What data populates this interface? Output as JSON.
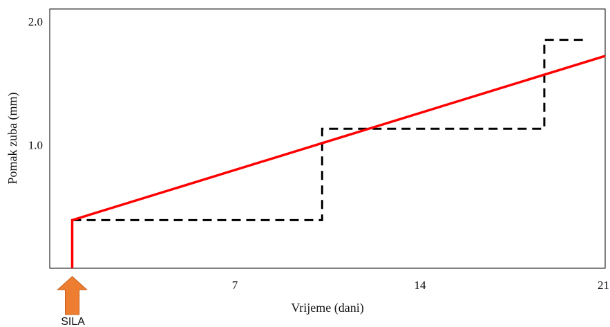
{
  "chart_data": {
    "type": "line",
    "title": "",
    "xlabel": "Vrijeme (dani)",
    "ylabel": "Pomak zuba (mm)",
    "xlim": [
      0,
      21
    ],
    "ylim": [
      0,
      2.1
    ],
    "xticks": [
      "7",
      "14",
      "21"
    ],
    "xtick_values": [
      7,
      14,
      21
    ],
    "yticks": [
      "1.0",
      "2.0"
    ],
    "ytick_values": [
      1.0,
      2.0
    ],
    "grid": false,
    "series": [
      {
        "style": "solid",
        "color": "#ff0000",
        "points": [
          [
            0.85,
            0
          ],
          [
            0.85,
            0.39
          ],
          [
            21,
            1.72
          ]
        ]
      },
      {
        "style": "dashed",
        "color": "#000000",
        "points": [
          [
            0.85,
            0.39
          ],
          [
            10.3,
            0.39
          ],
          [
            10.3,
            1.13
          ],
          [
            18.7,
            1.13
          ],
          [
            18.7,
            1.85
          ],
          [
            20.2,
            1.85
          ]
        ]
      }
    ],
    "annotations": [
      {
        "text": "SILA",
        "x": 0.85,
        "marker": "up-arrow",
        "color": "#ed7d31"
      }
    ]
  }
}
